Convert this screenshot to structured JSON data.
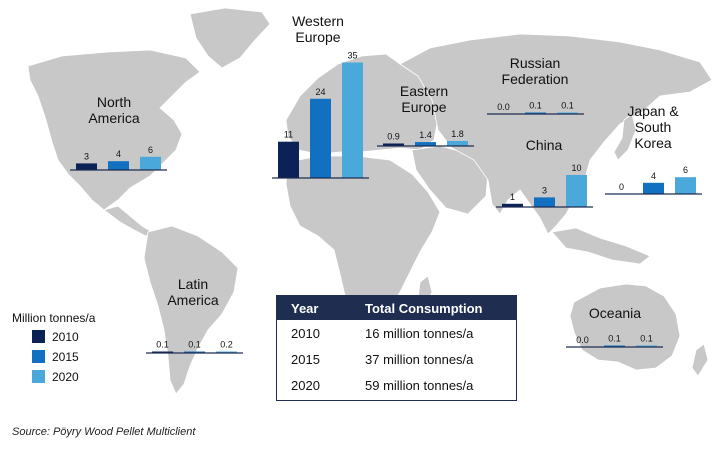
{
  "chart_data": {
    "type": "bar",
    "legend": {
      "title": "Million tonnes/a",
      "entries": [
        {
          "name": "2010",
          "color": "#0b2256"
        },
        {
          "name": "2015",
          "color": "#1170c0"
        },
        {
          "name": "2020",
          "color": "#4ba8da"
        }
      ]
    },
    "regions": [
      {
        "id": "north-america",
        "label_lines": [
          "North",
          "America"
        ],
        "values": [
          3,
          4,
          6
        ],
        "labels": [
          "3",
          "4",
          "6"
        ]
      },
      {
        "id": "western-europe",
        "label_lines": [
          "Western",
          "Europe"
        ],
        "values": [
          11,
          24,
          35
        ],
        "labels": [
          "11",
          "24",
          "35"
        ]
      },
      {
        "id": "eastern-europe",
        "label_lines": [
          "Eastern",
          "Europe"
        ],
        "values": [
          0.9,
          1.4,
          1.8
        ],
        "labels": [
          "0.9",
          "1.4",
          "1.8"
        ]
      },
      {
        "id": "russian-federation",
        "label_lines": [
          "Russian",
          "Federation"
        ],
        "values": [
          0.0,
          0.1,
          0.1
        ],
        "labels": [
          "0.0",
          "0.1",
          "0.1"
        ]
      },
      {
        "id": "china",
        "label_lines": [
          "China"
        ],
        "values": [
          1,
          3,
          10
        ],
        "labels": [
          "1",
          "3",
          "10"
        ]
      },
      {
        "id": "japan-south-korea",
        "label_lines": [
          "Japan &",
          "South",
          "Korea"
        ],
        "values": [
          0,
          4,
          6
        ],
        "labels": [
          "0",
          "4",
          "6"
        ]
      },
      {
        "id": "latin-america",
        "label_lines": [
          "Latin",
          "America"
        ],
        "values": [
          0.1,
          0.1,
          0.2
        ],
        "labels": [
          "0.1",
          "0.1",
          "0.2"
        ]
      },
      {
        "id": "oceania",
        "label_lines": [
          "Oceania"
        ],
        "values": [
          0.0,
          0.1,
          0.1
        ],
        "labels": [
          "0.0",
          "0.1",
          "0.1"
        ]
      }
    ]
  },
  "summary_table": {
    "headers": [
      "Year",
      "Total Consumption"
    ],
    "rows": [
      [
        "2010",
        "16 million tonnes/a"
      ],
      [
        "2015",
        "37 million tonnes/a"
      ],
      [
        "2020",
        "59 million tonnes/a"
      ]
    ]
  },
  "source": "Source: Pöyry Wood Pellet Multiclient",
  "colors": {
    "map_fill": "#c8c8c8",
    "map_border": "#ffffff",
    "table_header": "#1f2d50",
    "baseline": "#1f2d50"
  }
}
